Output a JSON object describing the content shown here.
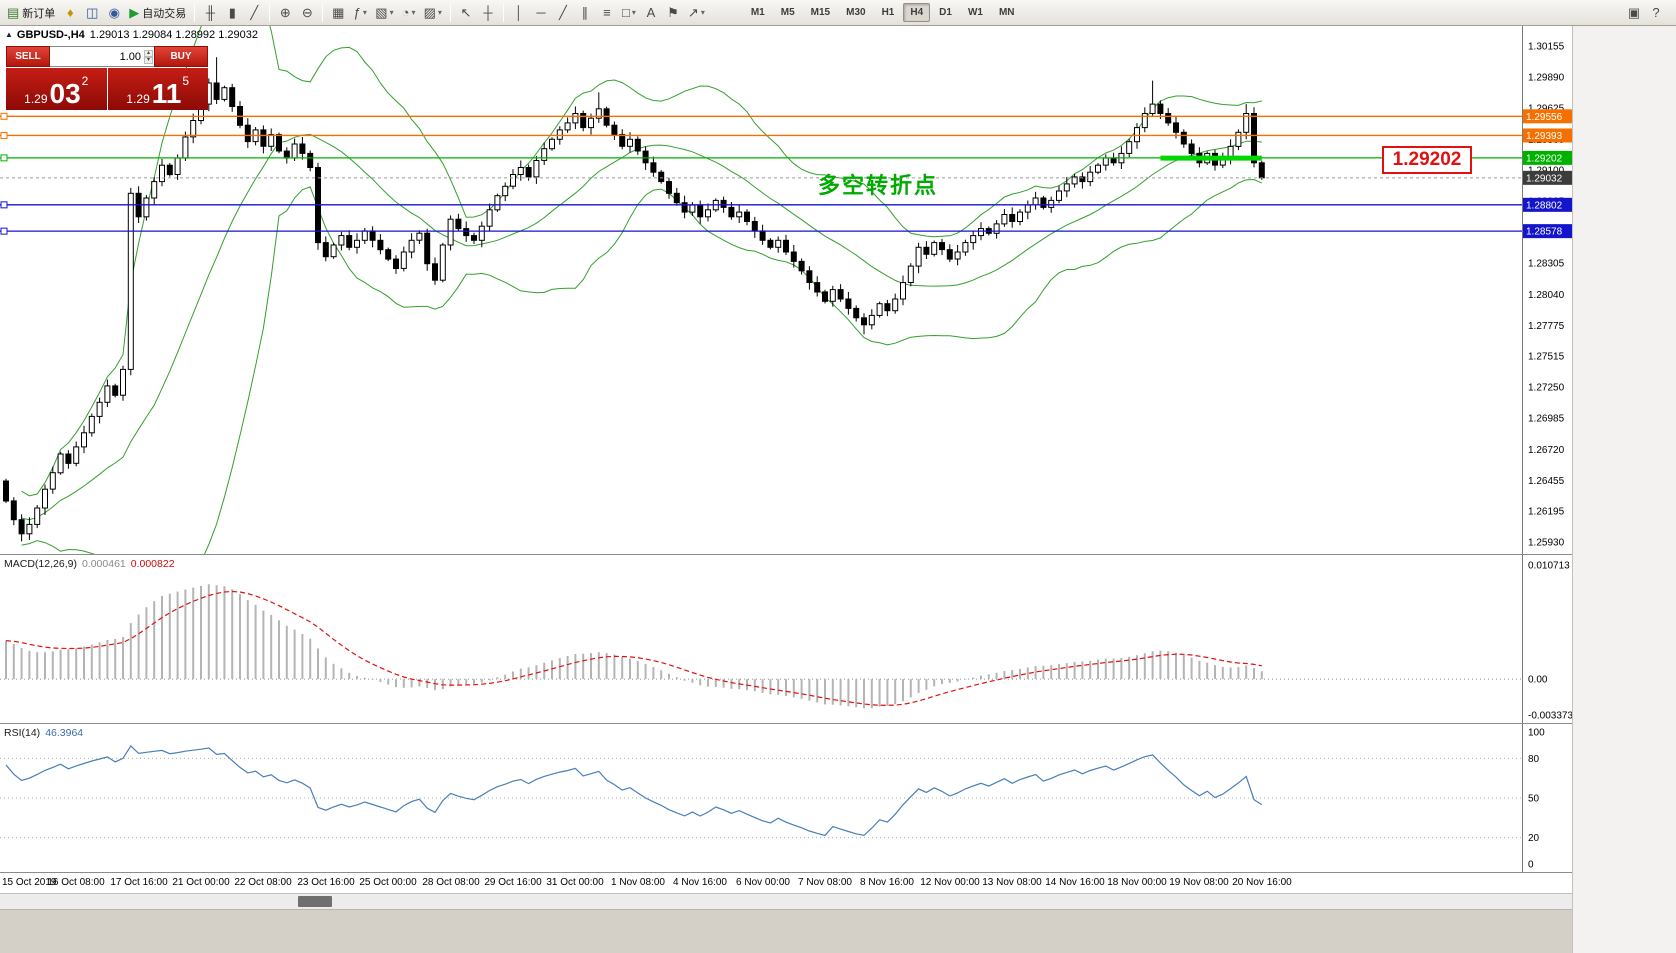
{
  "colors": {
    "up_candle": "#ffffff",
    "down_candle": "#000000",
    "candle_border": "#000000",
    "bollinger": "#33a02c",
    "bid_line": "#9a9a9a",
    "bid_tag": "#3c3c3c",
    "thick_segment": "#00d800",
    "callout_red": "#e11111",
    "annotation_green": "#00aa00",
    "macd_histogram": "#b4b4b4",
    "macd_signal": "#e01010",
    "rsi_line": "#4a7ebb",
    "axis_text": "#000000"
  },
  "icons": {
    "collapse": "▲",
    "spinner_up": "▴",
    "spinner_down": "▾",
    "dropdown": "▾"
  },
  "toolbar": {
    "buttons": [
      {
        "id": "new-order",
        "glyph": "▤",
        "glyph_color": "#3a7d2c",
        "label": "新订单"
      },
      {
        "id": "metaeditor",
        "glyph": "♦",
        "glyph_color": "#c79100"
      },
      {
        "id": "market-watch",
        "glyph": "◫",
        "glyph_color": "#33589c"
      },
      {
        "id": "navigator",
        "glyph": "◉",
        "glyph_color": "#33589c"
      },
      {
        "id": "autotrading",
        "glyph": "▶",
        "glyph_color": "#1e9e30",
        "label": "自动交易"
      },
      {
        "sep": true
      },
      {
        "id": "bar-chart",
        "glyph": "╫"
      },
      {
        "id": "candle-chart",
        "glyph": "▮"
      },
      {
        "id": "line-chart",
        "glyph": "╱"
      },
      {
        "sep": true
      },
      {
        "id": "zoom-in",
        "glyph": "⊕"
      },
      {
        "id": "zoom-out",
        "glyph": "⊖"
      },
      {
        "sep": true
      },
      {
        "id": "tile-windows",
        "glyph": "▦"
      },
      {
        "id": "indicator-list",
        "glyph": "ƒ",
        "dropdown": true
      },
      {
        "id": "new-chart",
        "glyph": "▧",
        "dropdown": true
      },
      {
        "id": "period-list",
        "glyph": "◔",
        "dropdown": true
      },
      {
        "id": "template-list",
        "glyph": "▨",
        "dropdown": true
      },
      {
        "sep": true
      },
      {
        "id": "cursor",
        "glyph": "↖"
      },
      {
        "id": "crosshair",
        "glyph": "┼"
      },
      {
        "sep": true
      },
      {
        "id": "vertical-line",
        "glyph": "│"
      },
      {
        "id": "horizontal-line",
        "glyph": "─"
      },
      {
        "id": "trend-line",
        "glyph": "╱"
      },
      {
        "id": "channel",
        "glyph": "∥"
      },
      {
        "id": "fibonacci",
        "glyph": "≡"
      },
      {
        "id": "shapes",
        "glyph": "□",
        "dropdown": true
      },
      {
        "id": "text",
        "glyph": "A"
      },
      {
        "id": "text-label",
        "glyph": "⚑"
      },
      {
        "id": "arrow-objects",
        "glyph": "↗",
        "dropdown": true
      }
    ],
    "timeframes": {
      "items": [
        "M1",
        "M5",
        "M15",
        "M30",
        "H1",
        "H4",
        "D1",
        "W1",
        "MN"
      ],
      "active": "H4"
    },
    "right_buttons": [
      {
        "id": "chart-shift",
        "glyph": "▣"
      },
      {
        "id": "help",
        "glyph": "?"
      }
    ]
  },
  "chart": {
    "symbol_info": {
      "symbol": "GBPUSD-,H4",
      "ohlc": "1.29013 1.29084 1.28992 1.29032"
    },
    "trade_panel": {
      "sell_label": "SELL",
      "buy_label": "BUY",
      "lot": "1.00",
      "sell_price": {
        "prefix": "1.29",
        "big": "03",
        "sup": "2"
      },
      "buy_price": {
        "prefix": "1.29",
        "big": "11",
        "sup": "5"
      }
    },
    "annotation": "多空转折点",
    "callout": "1.29202",
    "price_axis": {
      "ticks": [
        "1.30155",
        "1.29890",
        "1.29625",
        "1.29360",
        "1.29100",
        "1.28835",
        "1.28570",
        "1.28305",
        "1.28040",
        "1.27775",
        "1.27515",
        "1.27250",
        "1.26985",
        "1.26720",
        "1.26455",
        "1.26195",
        "1.25930"
      ]
    },
    "hlines": [
      {
        "price": 1.29556,
        "label": "1.29556",
        "color": "#f57000"
      },
      {
        "price": 1.29393,
        "label": "1.29393",
        "color": "#f57000"
      },
      {
        "price": 1.29202,
        "label": "1.29202",
        "color": "#00b200"
      },
      {
        "price": 1.28802,
        "label": "1.28802",
        "color": "#1414cc"
      },
      {
        "price": 1.28578,
        "label": "1.28578",
        "color": "#1414cc"
      }
    ],
    "bid": {
      "price": 1.29032,
      "label": "1.29032"
    },
    "segment": {
      "price": 1.292,
      "from_bar": 148,
      "to_bar": 161
    }
  },
  "chart_data": {
    "type": "candlestick",
    "symbol": "GBPUSD-",
    "timeframe": "H4",
    "price_range": [
      1.2593,
      1.30155
    ],
    "first_open": 1.2645,
    "closes": [
      1.2628,
      1.2612,
      1.26,
      1.2608,
      1.2622,
      1.2638,
      1.2652,
      1.2668,
      1.266,
      1.2674,
      1.2686,
      1.27,
      1.2712,
      1.2726,
      1.2718,
      1.274,
      1.289,
      1.287,
      1.2886,
      1.29,
      1.2914,
      1.2906,
      1.292,
      1.2938,
      1.2952,
      1.2966,
      1.2984,
      1.297,
      1.298,
      1.2964,
      1.2948,
      1.2934,
      1.2944,
      1.293,
      1.294,
      1.2926,
      1.292,
      1.2932,
      1.2924,
      1.2912,
      1.2848,
      1.2836,
      1.2846,
      1.2854,
      1.2844,
      1.285,
      1.2858,
      1.285,
      1.2842,
      1.2834,
      1.2826,
      1.284,
      1.285,
      1.2856,
      1.283,
      1.2816,
      1.2846,
      1.2868,
      1.286,
      1.2854,
      1.285,
      1.2862,
      1.2876,
      1.2888,
      1.2896,
      1.2906,
      1.2912,
      1.2904,
      1.2918,
      1.2928,
      1.2936,
      1.2944,
      1.295,
      1.2958,
      1.2946,
      1.2954,
      1.2962,
      1.2948,
      1.294,
      1.293,
      1.2936,
      1.2926,
      1.2916,
      1.2908,
      1.29,
      1.289,
      1.2882,
      1.2874,
      1.288,
      1.287,
      1.2876,
      1.2884,
      1.2878,
      1.287,
      1.2874,
      1.2866,
      1.2858,
      1.285,
      1.2844,
      1.285,
      1.284,
      1.2832,
      1.2824,
      1.2814,
      1.2806,
      1.2798,
      1.2808,
      1.28,
      1.2792,
      1.2784,
      1.2778,
      1.2786,
      1.2796,
      1.279,
      1.28,
      1.2814,
      1.2828,
      1.2844,
      1.2838,
      1.2848,
      1.2842,
      1.2834,
      1.284,
      1.2848,
      1.2854,
      1.286,
      1.2856,
      1.2864,
      1.2872,
      1.2866,
      1.2874,
      1.288,
      1.2886,
      1.2878,
      1.2884,
      1.2892,
      1.2898,
      1.2904,
      1.29,
      1.2908,
      1.2914,
      1.292,
      1.2916,
      1.2924,
      1.2934,
      1.2946,
      1.2958,
      1.2966,
      1.2958,
      1.295,
      1.2942,
      1.2932,
      1.2924,
      1.2916,
      1.2924,
      1.2914,
      1.292,
      1.293,
      1.2942,
      1.2958,
      1.2916,
      1.29032
    ],
    "overrides": {
      "2": {
        "low": 1.25935
      },
      "16": {
        "low": 1.2735
      },
      "27": {
        "high": 1.3006
      },
      "76": {
        "high": 1.2976
      },
      "110": {
        "low": 1.277
      },
      "147": {
        "high": 1.2986
      },
      "159": {
        "high": 1.2966
      }
    },
    "indicators": {
      "bollinger": {
        "period": 20,
        "deviation": 2
      },
      "macd": {
        "fast": 12,
        "slow": 26,
        "signal": 9
      },
      "rsi": {
        "period": 14
      }
    }
  },
  "macd_panel": {
    "label": "MACD(12,26,9)",
    "value_main": "0.000461",
    "value_signal": "0.000822",
    "axis": [
      {
        "v": 0.010713,
        "label": "0.010713"
      },
      {
        "v": 0,
        "label": "0.00"
      },
      {
        "v": -0.003373,
        "label": "-0.003373"
      }
    ]
  },
  "rsi_panel": {
    "label": "RSI(14)",
    "value": "46.3964",
    "axis": [
      {
        "v": 100,
        "label": "100"
      },
      {
        "v": 80,
        "label": "80"
      },
      {
        "v": 50,
        "label": "50"
      },
      {
        "v": 20,
        "label": "20"
      },
      {
        "v": 0,
        "label": "0"
      }
    ],
    "levels": [
      80,
      50,
      20
    ]
  },
  "time_axis": {
    "first_bar": 1,
    "bars_per_label": 8,
    "labels": [
      "15 Oct 2019",
      "16 Oct 08:00",
      "17 Oct 16:00",
      "21 Oct 00:00",
      "22 Oct 08:00",
      "23 Oct 16:00",
      "25 Oct 00:00",
      "28 Oct 08:00",
      "29 Oct 16:00",
      "31 Oct 00:00",
      "1 Nov 08:00",
      "4 Nov 16:00",
      "6 Nov 00:00",
      "7 Nov 08:00",
      "8 Nov 16:00",
      "12 Nov 00:00",
      "13 Nov 08:00",
      "14 Nov 16:00",
      "18 Nov 00:00",
      "19 Nov 08:00",
      "20 Nov 16:00"
    ]
  }
}
